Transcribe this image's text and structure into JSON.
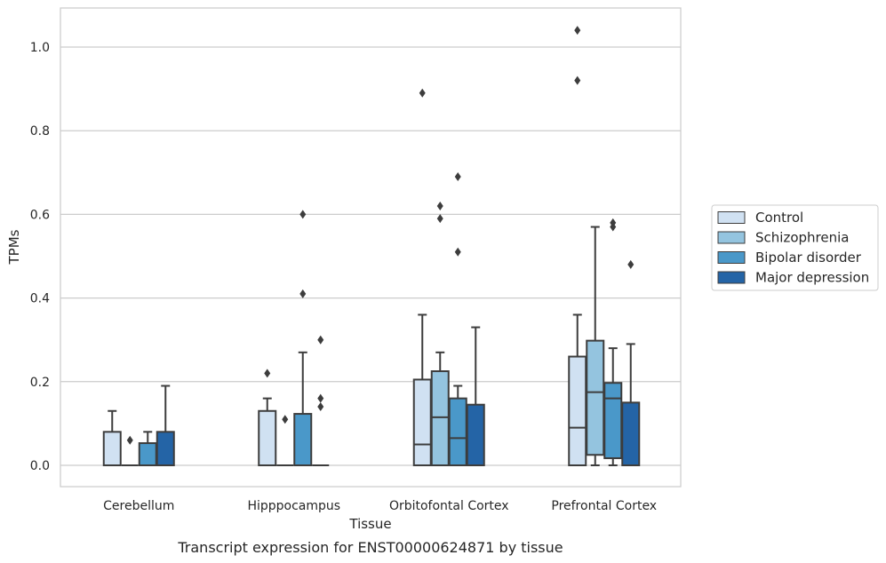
{
  "caption": "Transcript expression for ENST00000624871 by tissue",
  "chart_data": {
    "type": "boxplot",
    "xlabel": "Tissue",
    "ylabel": "TPMs",
    "ylim": [
      -0.05,
      1.09
    ],
    "yticks": [
      0.0,
      0.2,
      0.4,
      0.6,
      0.8,
      1.0
    ],
    "ytick_labels": [
      "0.0",
      "0.2",
      "0.4",
      "0.6",
      "0.8",
      "1.0"
    ],
    "grid": "horizontal",
    "legend_position": "right",
    "categories": [
      "Cerebellum",
      "Hipppocampus",
      "Orbitofontal Cortex",
      "Prefrontal Cortex"
    ],
    "series": [
      {
        "name": "Control",
        "color": "#d0e1f2",
        "boxes": [
          {
            "q1": 0.0,
            "median": 0.0,
            "q3": 0.08,
            "whisker_low": 0.0,
            "whisker_high": 0.13,
            "outliers": []
          },
          {
            "q1": 0.0,
            "median": 0.0,
            "q3": 0.13,
            "whisker_low": 0.0,
            "whisker_high": 0.16,
            "outliers": [
              0.22
            ]
          },
          {
            "q1": 0.0,
            "median": 0.05,
            "q3": 0.205,
            "whisker_low": 0.0,
            "whisker_high": 0.36,
            "outliers": [
              0.89
            ]
          },
          {
            "q1": 0.0,
            "median": 0.09,
            "q3": 0.26,
            "whisker_low": 0.0,
            "whisker_high": 0.36,
            "outliers": [
              0.92,
              1.04
            ]
          }
        ]
      },
      {
        "name": "Schizophrenia",
        "color": "#94c4df",
        "boxes": [
          {
            "q1": 0.0,
            "median": 0.0,
            "q3": 0.0,
            "whisker_low": 0.0,
            "whisker_high": 0.0,
            "outliers": [
              0.06
            ]
          },
          {
            "q1": 0.0,
            "median": 0.0,
            "q3": 0.0,
            "whisker_low": 0.0,
            "whisker_high": 0.0,
            "outliers": [
              0.11
            ]
          },
          {
            "q1": 0.0,
            "median": 0.115,
            "q3": 0.225,
            "whisker_low": 0.0,
            "whisker_high": 0.27,
            "outliers": [
              0.59,
              0.62
            ]
          },
          {
            "q1": 0.025,
            "median": 0.175,
            "q3": 0.298,
            "whisker_low": 0.0,
            "whisker_high": 0.57,
            "outliers": []
          }
        ]
      },
      {
        "name": "Bipolar disorder",
        "color": "#4a98c9",
        "boxes": [
          {
            "q1": 0.0,
            "median": 0.0,
            "q3": 0.053,
            "whisker_low": 0.0,
            "whisker_high": 0.08,
            "outliers": []
          },
          {
            "q1": 0.0,
            "median": 0.0,
            "q3": 0.123,
            "whisker_low": 0.0,
            "whisker_high": 0.27,
            "outliers": [
              0.41,
              0.6
            ]
          },
          {
            "q1": 0.0,
            "median": 0.065,
            "q3": 0.16,
            "whisker_low": 0.0,
            "whisker_high": 0.19,
            "outliers": [
              0.51,
              0.69
            ]
          },
          {
            "q1": 0.017,
            "median": 0.16,
            "q3": 0.197,
            "whisker_low": 0.0,
            "whisker_high": 0.28,
            "outliers": [
              0.57,
              0.58
            ]
          }
        ]
      },
      {
        "name": "Major depression",
        "color": "#2464a6",
        "boxes": [
          {
            "q1": 0.0,
            "median": 0.0,
            "q3": 0.08,
            "whisker_low": 0.0,
            "whisker_high": 0.19,
            "outliers": []
          },
          {
            "q1": 0.0,
            "median": 0.0,
            "q3": 0.0,
            "whisker_low": 0.0,
            "whisker_high": 0.0,
            "outliers": [
              0.14,
              0.16,
              0.3
            ]
          },
          {
            "q1": 0.0,
            "median": 0.0,
            "q3": 0.145,
            "whisker_low": 0.0,
            "whisker_high": 0.33,
            "outliers": []
          },
          {
            "q1": 0.0,
            "median": 0.0,
            "q3": 0.15,
            "whisker_low": 0.0,
            "whisker_high": 0.29,
            "outliers": [
              0.48
            ]
          }
        ]
      }
    ]
  }
}
